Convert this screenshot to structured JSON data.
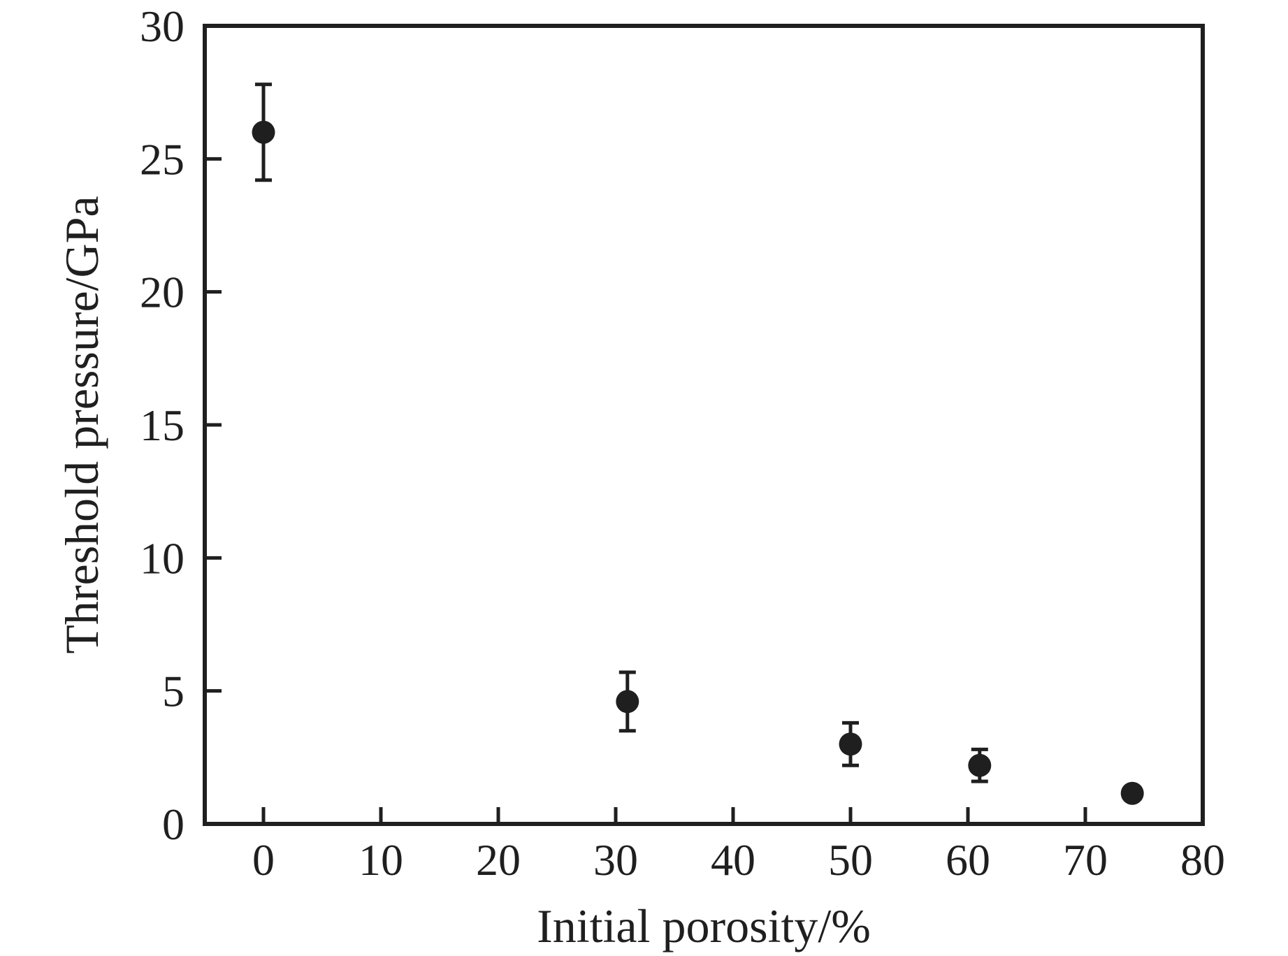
{
  "figure": {
    "background_color": "#ffffff",
    "ink_color": "#1f1f1f"
  },
  "chart_data": {
    "type": "scatter",
    "title": "",
    "xlabel": "Initial porosity/%",
    "ylabel": "Threshold pressure/GPa",
    "xlim": [
      -5,
      80
    ],
    "ylim": [
      0,
      30
    ],
    "x_ticks": [
      0,
      10,
      20,
      30,
      40,
      50,
      60,
      70,
      80
    ],
    "x_tick_lines": [
      0,
      10,
      20,
      30,
      40,
      50,
      60,
      70
    ],
    "y_ticks": [
      0,
      5,
      10,
      15,
      20,
      25,
      30
    ],
    "y_tick_lines": [
      5,
      10,
      15,
      20,
      25
    ],
    "grid": false,
    "legend_position": "none",
    "series": [
      {
        "name": "Threshold pressure",
        "marker": "filled-circle",
        "marker_color": "#1f1f1f",
        "error_bars": "y",
        "points": [
          {
            "x": 0,
            "y": 26.0,
            "yerr": 1.8
          },
          {
            "x": 31,
            "y": 4.6,
            "yerr": 1.1
          },
          {
            "x": 50,
            "y": 3.0,
            "yerr": 0.8
          },
          {
            "x": 61,
            "y": 2.2,
            "yerr": 0.6
          },
          {
            "x": 74,
            "y": 1.15,
            "yerr": 0
          }
        ]
      }
    ]
  }
}
